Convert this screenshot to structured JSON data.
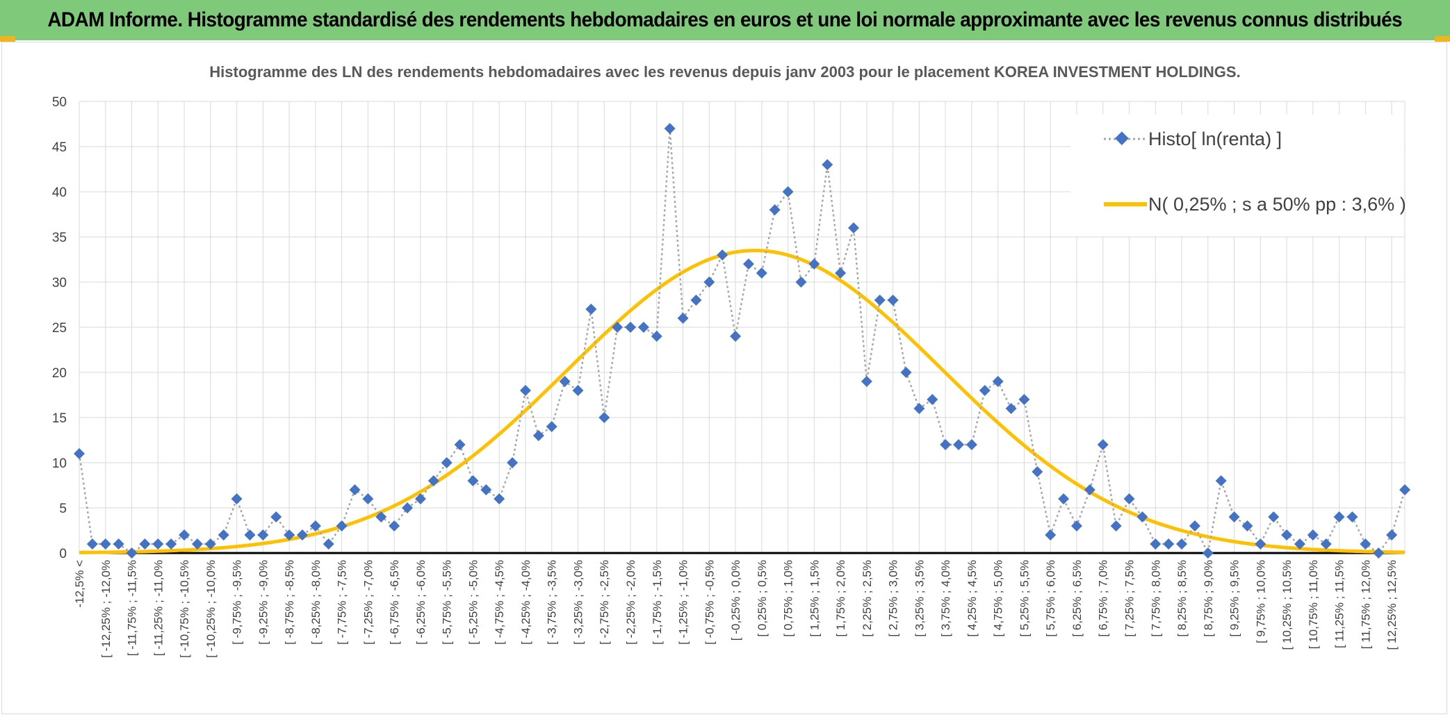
{
  "header": {
    "title": "ADAM Informe. Histogramme standardisé des rendements hebdomadaires en euros et une loi normale approximante avec les revenus connus distribués"
  },
  "colors": {
    "header_bg": "#7ec97a",
    "accent": "#f1b51c",
    "series_marker": "#4472c4",
    "series_line": "#a6a6a6",
    "normal_curve": "#ffc000"
  },
  "chart_data": {
    "type": "line",
    "title": "Histogramme des LN des rendements hebdomadaires avec les revenus depuis janv 2003 pour le placement KOREA INVESTMENT HOLDINGS.",
    "xlabel": "",
    "ylabel": "",
    "ylim": [
      0,
      50
    ],
    "yticks": [
      "0",
      "5",
      "10",
      "15",
      "20",
      "25",
      "30",
      "35",
      "40",
      "45",
      "50"
    ],
    "grid": true,
    "legend_position": "top-right",
    "categories": [
      "-12,5% <",
      "[ -12,25% ; -12,0%",
      "[ -11,75% ; -11,5%",
      "[ -11,25% ; -11,0%",
      "[ -10,75% ; -10,5%",
      "[ -10,25% ; -10,0%",
      "[ -9,75% ; -9,5%",
      "[ -9,25% ; -9,0%",
      "[ -8,75% ; -8,5%",
      "[ -8,25% ; -8,0%",
      "[ -7,75% ; -7,5%",
      "[ -7,25% ; -7,0%",
      "[ -6,75% ; -6,5%",
      "[ -6,25% ; -6,0%",
      "[ -5,75% ; -5,5%",
      "[ -5,25% ; -5,0%",
      "[ -4,75% ; -4,5%",
      "[ -4,25% ; -4,0%",
      "[ -3,75% ; -3,5%",
      "[ -3,25% ; -3,0%",
      "[ -2,75% ; -2,5%",
      "[ -2,25% ; -2,0%",
      "[ -1,75% ; -1,5%",
      "[ -1,25% ; -1,0%",
      "[ -0,75% ; -0,5%",
      "[ -0,25% ; 0,0%",
      "[ 0,25% ; 0,5%",
      "[ 0,75% ; 1,0%",
      "[ 1,25% ; 1,5%",
      "[ 1,75% ; 2,0%",
      "[ 2,25% ; 2,5%",
      "[ 2,75% ; 3,0%",
      "[ 3,25% ; 3,5%",
      "[ 3,75% ; 4,0%",
      "[ 4,25% ; 4,5%",
      "[ 4,75% ; 5,0%",
      "[ 5,25% ; 5,5%",
      "[ 5,75% ; 6,0%",
      "[ 6,25% ; 6,5%",
      "[ 6,75% ; 7,0%",
      "[ 7,25% ; 7,5%",
      "[ 7,75% ; 8,0%",
      "[ 8,25% ; 8,5%",
      "[ 8,75% ; 9,0%",
      "[ 9,25% ; 9,5%",
      "[ 9,75% ; 10,0%",
      "[ 10,25% ; 10,5%",
      "[ 10,75% ; 11,0%",
      "[ 11,25% ; 11,5%",
      "[ 11,75% ; 12,0%",
      "[ 12,25% ; 12,5%"
    ],
    "series": [
      {
        "name": "Histo[ ln(renta) ]",
        "type": "scatter-line",
        "values": [
          11,
          1,
          1,
          1,
          0,
          1,
          1,
          1,
          2,
          1,
          1,
          2,
          6,
          2,
          2,
          4,
          2,
          2,
          3,
          1,
          3,
          7,
          6,
          4,
          3,
          5,
          6,
          8,
          10,
          12,
          8,
          7,
          6,
          10,
          18,
          13,
          14,
          19,
          18,
          27,
          15,
          25,
          25,
          25,
          24,
          47,
          26,
          28,
          30,
          33,
          24,
          32,
          31,
          38,
          40,
          30,
          32,
          43,
          31,
          36,
          19,
          28,
          28,
          20,
          16,
          17,
          12,
          12,
          12,
          18,
          19,
          16,
          17,
          9,
          2,
          6,
          3,
          7,
          12,
          3,
          6,
          4,
          1,
          1,
          1,
          3,
          0,
          8,
          4,
          3,
          1,
          4,
          2,
          1,
          2,
          1,
          4,
          4,
          1,
          0,
          2,
          7
        ]
      },
      {
        "name": "N( 0,25% ; s a 50% pp : 3,6% )",
        "type": "line",
        "mean": 0.25,
        "std": 3.6,
        "peak": 33.5
      }
    ],
    "x_range_percent": [
      -12.75,
      12.75
    ]
  }
}
